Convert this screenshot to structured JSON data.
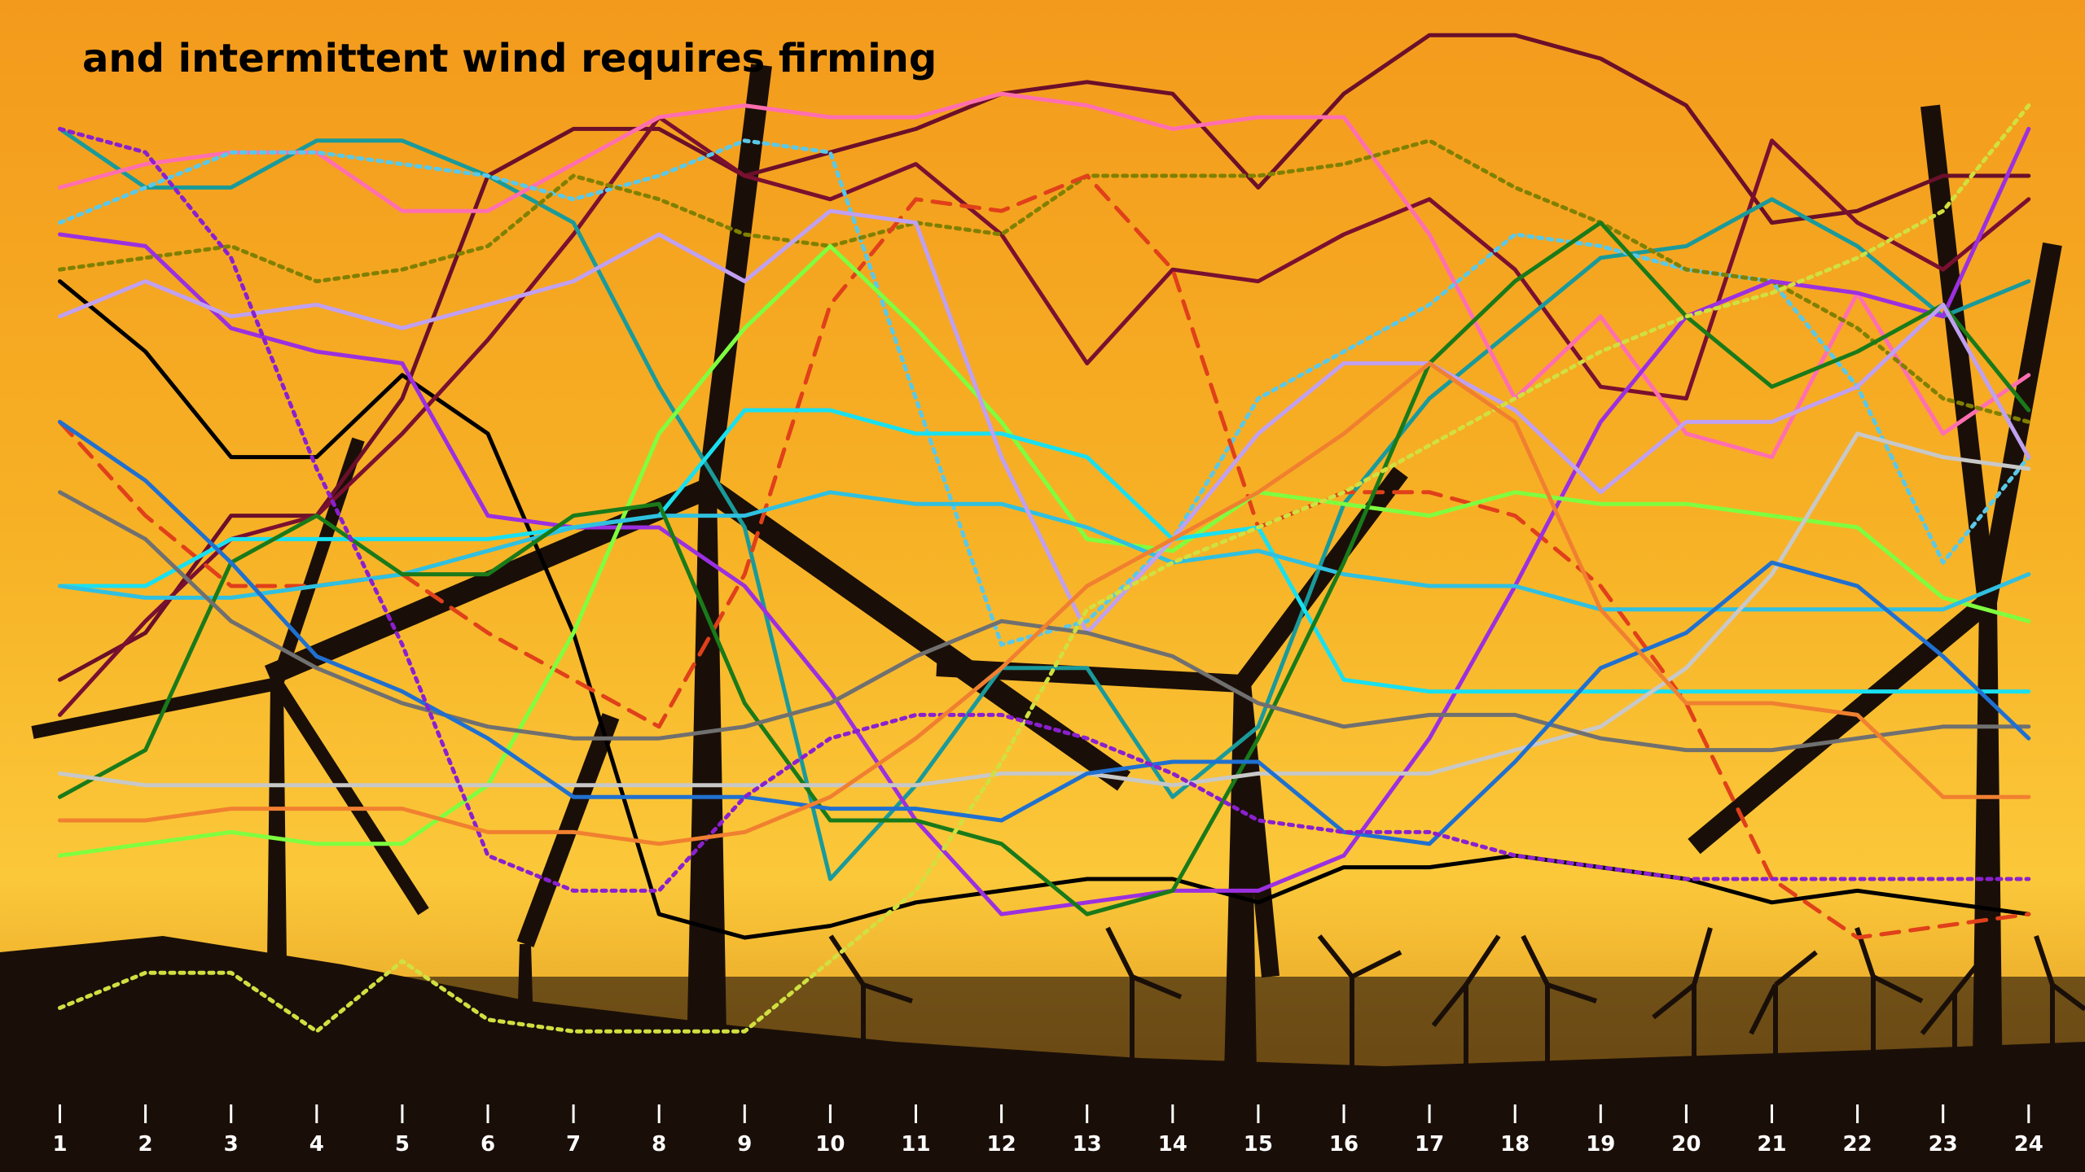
{
  "chart_data": {
    "type": "line",
    "title": "and intermittent wind requires firming",
    "categories": [
      "1",
      "2",
      "3",
      "4",
      "5",
      "6",
      "7",
      "8",
      "9",
      "10",
      "11",
      "12",
      "13",
      "14",
      "15",
      "16",
      "17",
      "18",
      "19",
      "20",
      "21",
      "22",
      "23",
      "24"
    ],
    "ylim": [
      0,
      100
    ],
    "series": [
      {
        "color": "#000000",
        "dash": "solid",
        "values": [
          76,
          70,
          61,
          61,
          68,
          63,
          46,
          22,
          20,
          21,
          23,
          24,
          25,
          25,
          23,
          26,
          26,
          27,
          26,
          25,
          23,
          24,
          23,
          22
        ]
      },
      {
        "color": "#6b0f2a",
        "dash": "solid",
        "values": [
          42,
          46,
          56,
          56,
          66,
          85,
          89,
          89,
          85,
          87,
          89,
          92,
          93,
          92,
          84,
          92,
          97,
          97,
          95,
          91,
          81,
          82,
          85,
          85
        ]
      },
      {
        "color": "#7a1030",
        "dash": "solid",
        "values": [
          39,
          47,
          54,
          56,
          63,
          71,
          80,
          90,
          85,
          83,
          86,
          80,
          69,
          77,
          76,
          80,
          83,
          77,
          67,
          66,
          88,
          81,
          77,
          83
        ]
      },
      {
        "color": "#1a9a9a",
        "dash": "solid",
        "values": [
          89,
          84,
          84,
          88,
          88,
          85,
          81,
          67,
          55,
          25,
          33,
          43,
          43,
          32,
          38,
          57,
          66,
          72,
          78,
          79,
          83,
          79,
          73,
          76
        ]
      },
      {
        "color": "#ff6fb0",
        "dash": "solid",
        "values": [
          84,
          86,
          87,
          87,
          82,
          82,
          86,
          90,
          91,
          90,
          90,
          92,
          91,
          89,
          90,
          90,
          80,
          66,
          73,
          63,
          61,
          75,
          63,
          68
        ]
      },
      {
        "color": "#5ac8e8",
        "dash": "dotted",
        "values": [
          81,
          84,
          87,
          87,
          86,
          85,
          83,
          85,
          88,
          87,
          66,
          45,
          47,
          54,
          66,
          70,
          74,
          80,
          79,
          77,
          76,
          67,
          52,
          61
        ]
      },
      {
        "color": "#808000",
        "dash": "dotted",
        "values": [
          77,
          78,
          79,
          76,
          77,
          79,
          85,
          83,
          80,
          79,
          81,
          80,
          85,
          85,
          85,
          86,
          88,
          84,
          81,
          77,
          76,
          72,
          66,
          64
        ]
      },
      {
        "color": "#e0401a",
        "dash": "dashed",
        "values": [
          64,
          56,
          50,
          50,
          51,
          46,
          42,
          38,
          51,
          74,
          83,
          82,
          85,
          77,
          55,
          58,
          58,
          56,
          50,
          40,
          25,
          20,
          21,
          22
        ]
      },
      {
        "color": "#9b30e0",
        "dash": "solid",
        "values": [
          80,
          79,
          72,
          70,
          69,
          56,
          55,
          55,
          50,
          41,
          30,
          22,
          23,
          24,
          24,
          27,
          37,
          50,
          64,
          73,
          76,
          75,
          73,
          89
        ]
      },
      {
        "color": "#7fff3f",
        "dash": "solid",
        "values": [
          27,
          28,
          29,
          28,
          28,
          33,
          46,
          63,
          72,
          79,
          72,
          64,
          54,
          53,
          58,
          57,
          56,
          58,
          57,
          57,
          56,
          55,
          49,
          47
        ]
      },
      {
        "color": "#19e0f0",
        "dash": "solid",
        "values": [
          50,
          50,
          54,
          54,
          54,
          54,
          55,
          56,
          65,
          65,
          63,
          63,
          61,
          54,
          55,
          42,
          41,
          41,
          41,
          41,
          41,
          41,
          41,
          41
        ]
      },
      {
        "color": "#30c0e0",
        "dash": "solid",
        "values": [
          50,
          49,
          49,
          50,
          51,
          53,
          55,
          56,
          56,
          58,
          57,
          57,
          55,
          52,
          53,
          51,
          50,
          50,
          48,
          48,
          48,
          48,
          48,
          51
        ]
      },
      {
        "color": "#1a7a1a",
        "dash": "solid",
        "values": [
          32,
          36,
          52,
          56,
          51,
          51,
          56,
          57,
          40,
          30,
          30,
          28,
          22,
          24,
          37,
          52,
          69,
          76,
          81,
          73,
          67,
          70,
          74,
          65
        ]
      },
      {
        "color": "#c0a0f0",
        "dash": "solid",
        "values": [
          73,
          76,
          73,
          74,
          72,
          74,
          76,
          80,
          76,
          82,
          81,
          61,
          46,
          54,
          63,
          69,
          69,
          65,
          58,
          64,
          64,
          67,
          74,
          61
        ]
      },
      {
        "color": "#c8c8c8",
        "dash": "solid",
        "values": [
          34,
          33,
          33,
          33,
          33,
          33,
          33,
          33,
          33,
          33,
          33,
          34,
          34,
          33,
          34,
          34,
          34,
          36,
          38,
          43,
          51,
          63,
          61,
          60
        ]
      },
      {
        "color": "#707070",
        "dash": "solid",
        "values": [
          58,
          54,
          47,
          43,
          40,
          38,
          37,
          37,
          38,
          40,
          44,
          47,
          46,
          44,
          40,
          38,
          39,
          39,
          37,
          36,
          36,
          37,
          38,
          38
        ]
      },
      {
        "color": "#d0e040",
        "dash": "dotted",
        "values": [
          14,
          17,
          17,
          12,
          18,
          13,
          12,
          12,
          12,
          18,
          24,
          35,
          48,
          52,
          55,
          58,
          62,
          66,
          70,
          73,
          75,
          78,
          82,
          91
        ]
      },
      {
        "color": "#2070d0",
        "dash": "solid",
        "values": [
          64,
          59,
          52,
          44,
          41,
          37,
          32,
          32,
          32,
          31,
          31,
          30,
          34,
          35,
          35,
          29,
          28,
          35,
          43,
          46,
          52,
          50,
          44,
          37
        ]
      },
      {
        "color": "#8a20d0",
        "dash": "dotted",
        "values": [
          89,
          87,
          78,
          60,
          45,
          27,
          24,
          24,
          32,
          37,
          39,
          39,
          37,
          34,
          30,
          29,
          29,
          27,
          26,
          25,
          25,
          25,
          25,
          25
        ]
      },
      {
        "color": "#f08030",
        "dash": "solid",
        "values": [
          30,
          30,
          31,
          31,
          31,
          29,
          29,
          28,
          29,
          32,
          37,
          43,
          50,
          54,
          58,
          63,
          69,
          64,
          48,
          40,
          40,
          39,
          32,
          32
        ]
      }
    ]
  }
}
